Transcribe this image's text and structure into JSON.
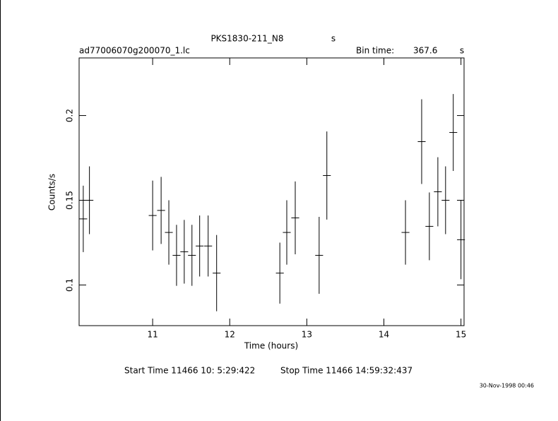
{
  "chart_data": {
    "type": "errorbar",
    "title": "PKS1830-211_N8",
    "title_unit": "s",
    "subtitle": "ad77006070g200070_1.lc",
    "bin_time_label": "Bin time:",
    "bin_time": "367.6",
    "bin_time_unit": "s",
    "x_label": "Time (hours)",
    "y_label": "Counts/s",
    "start_time": "Start Time 11466 10: 5:29:422",
    "stop_time": "Stop Time 11466 14:59:32:437",
    "footer_date": "30-Nov-1998 00:46",
    "x": [
      10.1,
      10.18,
      11.0,
      11.11,
      11.21,
      11.31,
      11.41,
      11.51,
      11.61,
      11.72,
      11.83,
      12.65,
      12.74,
      12.85,
      13.16,
      13.26,
      14.28,
      14.49,
      14.59,
      14.7,
      14.8,
      14.9,
      15.0
    ],
    "values": [
      0.139,
      0.15,
      0.141,
      0.144,
      0.131,
      0.1175,
      0.1196,
      0.1175,
      0.123,
      0.123,
      0.107,
      0.107,
      0.131,
      0.1396,
      0.1175,
      0.1646,
      0.131,
      0.1846,
      0.1346,
      0.155,
      0.15,
      0.19,
      0.1267
    ],
    "yerr": [
      0.0196,
      0.02,
      0.0206,
      0.0198,
      0.019,
      0.018,
      0.0188,
      0.018,
      0.018,
      0.018,
      0.0225,
      0.018,
      0.019,
      0.0215,
      0.0227,
      0.026,
      0.019,
      0.025,
      0.02,
      0.0204,
      0.02,
      0.0227,
      0.0233
    ],
    "xerr": 0.051,
    "color": "#000000",
    "xlim": [
      10.046,
      15.04
    ],
    "ylim": [
      0.076,
      0.234
    ],
    "xticks": [
      11,
      12,
      13,
      14,
      15
    ],
    "yticks": [
      0.1,
      0.15,
      0.2
    ]
  }
}
